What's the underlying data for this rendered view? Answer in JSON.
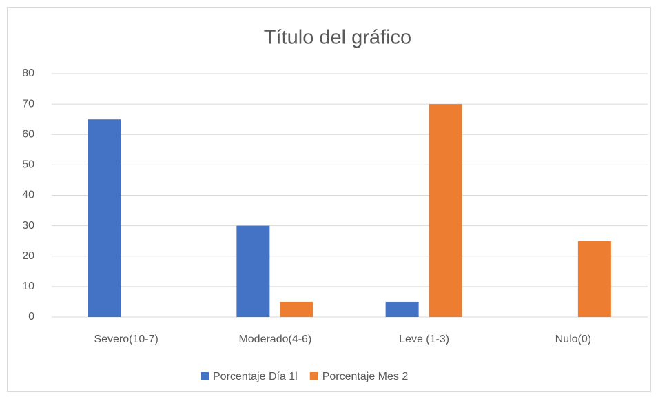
{
  "chart_data": {
    "type": "bar",
    "title": "Título del gráfico",
    "categories": [
      "Severo(10-7)",
      "Moderado(4-6)",
      "Leve (1-3)",
      "Nulo(0)"
    ],
    "series": [
      {
        "name": "Porcentaje Día 1l",
        "color": "#4472c4",
        "values": [
          65,
          30,
          5,
          0
        ]
      },
      {
        "name": "Porcentaje Mes 2",
        "color": "#ed7d31",
        "values": [
          0,
          5,
          70,
          25
        ]
      }
    ],
    "ylim": [
      0,
      80
    ],
    "yticks": [
      0,
      10,
      20,
      30,
      40,
      50,
      60,
      70,
      80
    ],
    "grid": true,
    "legend": "bottom"
  }
}
